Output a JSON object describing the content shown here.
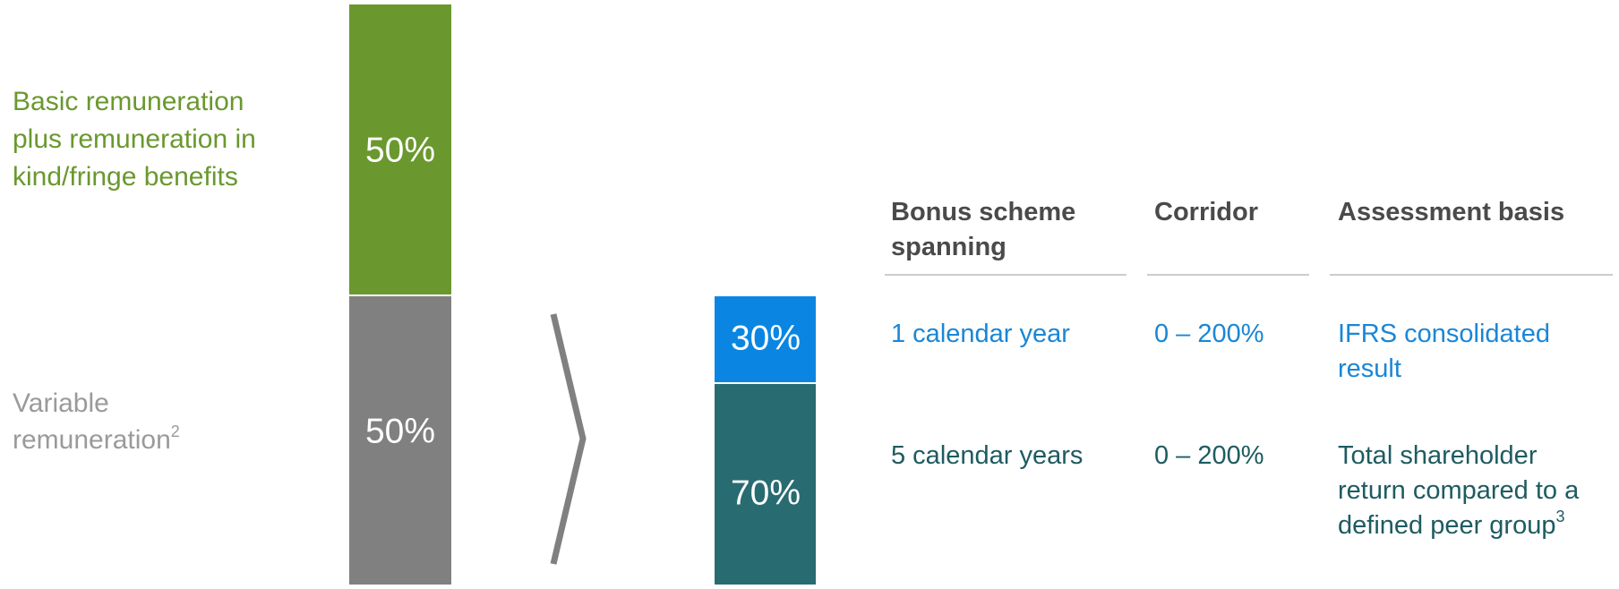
{
  "left_labels": {
    "fixed": [
      "Basic remuneration",
      "plus remuneration in",
      "kind/fringe benefits"
    ],
    "variable": {
      "lines": [
        "Variable",
        "remuneration"
      ],
      "footnote": "2"
    }
  },
  "bars": {
    "fixed": "50%",
    "variable": "50%",
    "short_term": "30%",
    "long_term": "70%"
  },
  "table": {
    "headers": [
      [
        "Bonus scheme",
        "spanning"
      ],
      [
        "Corridor"
      ],
      [
        "Assessment basis"
      ]
    ],
    "rows": [
      [
        {
          "lines": [
            "1 calendar year"
          ]
        },
        {
          "lines": [
            "0 – 200%"
          ]
        },
        {
          "lines": [
            "IFRS consolidated",
            "result"
          ]
        }
      ],
      [
        {
          "lines": [
            "5 calendar years"
          ]
        },
        {
          "lines": [
            "0 – 200%"
          ]
        },
        {
          "lines": [
            "Total shareholder",
            "return compared to a",
            "defined peer group"
          ],
          "footnote": "3"
        }
      ]
    ]
  }
}
